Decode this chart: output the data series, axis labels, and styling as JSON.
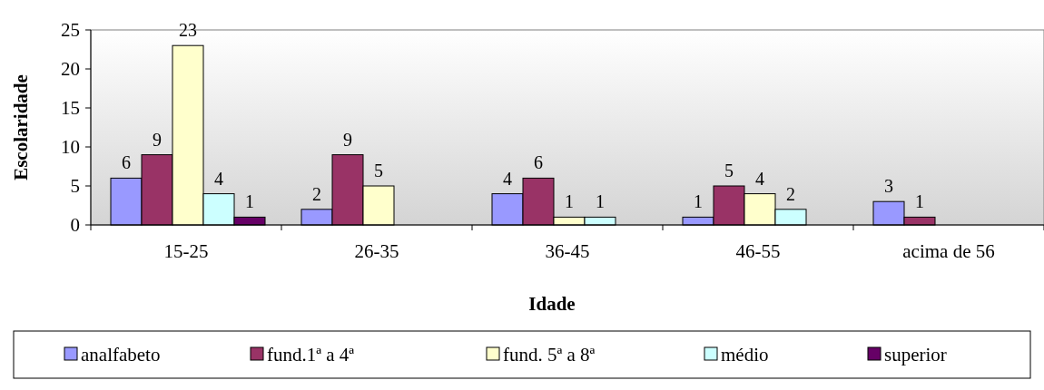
{
  "chart_data": {
    "type": "bar",
    "xlabel": "Idade",
    "ylabel": "Escolaridade",
    "categories": [
      "15-25",
      "26-35",
      "36-45",
      "46-55",
      "acima de 56"
    ],
    "series": [
      {
        "name": "analfabeto",
        "color": "#9999ff",
        "values": [
          6,
          2,
          4,
          1,
          3
        ]
      },
      {
        "name": "fund.1ª a 4ª",
        "color": "#993366",
        "values": [
          9,
          9,
          6,
          5,
          1
        ]
      },
      {
        "name": "fund. 5ª a 8ª",
        "color": "#ffffcc",
        "values": [
          23,
          5,
          1,
          4,
          null
        ]
      },
      {
        "name": "médio",
        "color": "#ccffff",
        "values": [
          4,
          null,
          1,
          2,
          null
        ]
      },
      {
        "name": "superior",
        "color": "#660066",
        "values": [
          1,
          null,
          null,
          null,
          null
        ]
      }
    ],
    "ylim": [
      0,
      25
    ],
    "yticks": [
      0,
      5,
      10,
      15,
      20,
      25
    ],
    "data_labels": true,
    "legend": "bottom",
    "grid": false
  }
}
